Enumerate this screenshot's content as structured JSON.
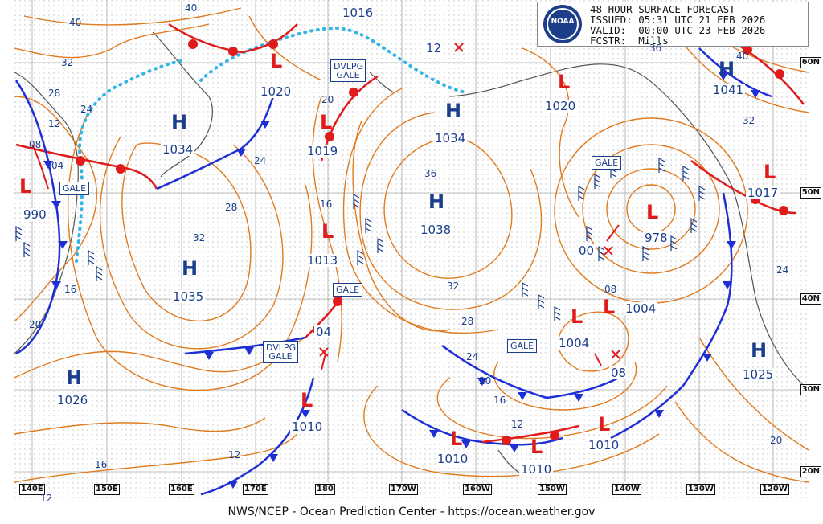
{
  "header": {
    "title": "48-HOUR SURFACE FORECAST",
    "issued": "ISSUED: 05:31 UTC 21 FEB 2026",
    "valid": "VALID:  00:00 UTC 23 FEB 2026",
    "forecaster": "FCSTR:  Mills",
    "logo_text": "NOAA"
  },
  "footer": "NWS/NCEP - Ocean Prediction Center - https://ocean.weather.gov",
  "colors": {
    "isobar": "#e07b1f",
    "high": "#1a3e8c",
    "low": "#e01b1b",
    "cold_front": "#1e2fd6",
    "warm_front": "#e01b1b",
    "ice_edge": "#33b5e5",
    "land": "#555555",
    "grid": "#bbbbbb"
  },
  "longitude_labels": [
    "140E",
    "150E",
    "160E",
    "170E",
    "180",
    "170W",
    "160W",
    "150W",
    "140W",
    "130W",
    "120W"
  ],
  "latitude_labels": [
    "60N",
    "50N",
    "40N",
    "30N",
    "20N"
  ],
  "pressure_centers": [
    {
      "type": "H",
      "value": "1034"
    },
    {
      "type": "H",
      "value": "1035"
    },
    {
      "type": "H",
      "value": "1026"
    },
    {
      "type": "H",
      "value": "1034"
    },
    {
      "type": "H",
      "value": "1038"
    },
    {
      "type": "H",
      "value": "1041"
    },
    {
      "type": "H",
      "value": "1025"
    },
    {
      "type": "L",
      "value": "990"
    },
    {
      "type": "L",
      "value": "1019"
    },
    {
      "type": "L",
      "value": "1013"
    },
    {
      "type": "L",
      "value": "1010"
    },
    {
      "type": "L",
      "value": "978"
    },
    {
      "type": "L",
      "value": "1004"
    },
    {
      "type": "L",
      "value": "1004"
    },
    {
      "type": "L",
      "value": "1010"
    },
    {
      "type": "L",
      "value": "1010"
    },
    {
      "type": "L",
      "value": "1010"
    },
    {
      "type": "L",
      "value": "1017"
    },
    {
      "type": "L",
      "value": "1020"
    },
    {
      "type": "L",
      "value": "1020"
    },
    {
      "type": "L",
      "value": "1016"
    }
  ],
  "warnings": [
    "GALE",
    "DVLPG GALE",
    "DVLPG GALE",
    "GALE",
    "GALE",
    "GALE"
  ],
  "forecast_positions": [
    "12",
    "04",
    "00",
    "08"
  ],
  "isobar_labels": [
    "40",
    "32",
    "28",
    "24",
    "20",
    "16",
    "12",
    "08",
    "04",
    "40",
    "36",
    "32",
    "28",
    "24",
    "20",
    "16",
    "12",
    "08",
    "36",
    "32",
    "28",
    "24",
    "20",
    "16",
    "12",
    "40",
    "32",
    "24",
    "20",
    "16",
    "12"
  ]
}
